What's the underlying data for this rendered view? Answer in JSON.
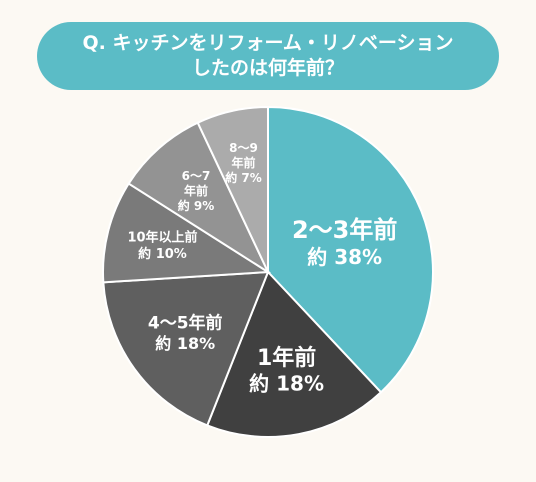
{
  "chart_data": {
    "type": "pie",
    "title_lines": [
      "Q. キッチンをリフォーム・リノベーション",
      "したのは何年前？"
    ],
    "slices": [
      {
        "category": "2～3年前",
        "value": 38,
        "value_label": "約 38%",
        "color": "#5bbcc6",
        "text_color": "#ffffff"
      },
      {
        "category": "1年前",
        "value": 18,
        "value_label": "約 18%",
        "color": "#404040",
        "text_color": "#ffffff"
      },
      {
        "category": "4～5年前",
        "value": 18,
        "value_label": "約 18%",
        "color": "#5f5f5f",
        "text_color": "#ffffff"
      },
      {
        "category": "10年以上前",
        "value": 10,
        "value_label": "約 10%",
        "color": "#7a7a7a",
        "text_color": "#ffffff"
      },
      {
        "category": "6～7",
        "category2": "年前",
        "value": 9,
        "value_label": "約 9%",
        "color": "#939393",
        "text_color": "#ffffff"
      },
      {
        "category": "8～9",
        "category2": "年前",
        "value": 7,
        "value_label": "約 7%",
        "color": "#ababab",
        "text_color": "#ffffff"
      }
    ]
  }
}
